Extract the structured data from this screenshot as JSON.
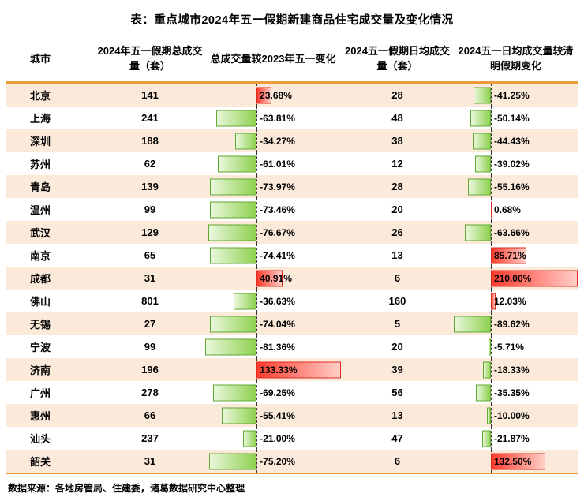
{
  "title": "表：重点城市2024年五一假期新建商品住宅成交量及变化情况",
  "source": "数据来源：各地房管局、住建委，诸葛数据研究中心整理",
  "colors": {
    "row_stripe": "#FBE9DA",
    "rule_orange": "#ED9C3B",
    "positive_bar": "#FF3B2F",
    "positive_bar_border": "#DE2A1E",
    "negative_bar": "#8ED150",
    "negative_bar_border": "#61A832"
  },
  "chart_data": {
    "type": "table",
    "title": "表：重点城市2024年五一假期新建商品住宅成交量及变化情况",
    "columns": [
      "城市",
      "2024年五一假期总成交量（套）",
      "总成交量较2023年五一变化",
      "2024五一假期日均成交量（套）",
      "2024五一日均成交量较清明假期变化"
    ],
    "bar_axes": {
      "change_vs_2023": {
        "min": -81.36,
        "max": 133.33
      },
      "change_vs_qingming": {
        "min": -89.62,
        "max": 210.0
      }
    },
    "rows": [
      {
        "city": "北京",
        "total": 141,
        "change_vs_2023": 23.68,
        "daily": 28,
        "change_vs_qingming": -41.25
      },
      {
        "city": "上海",
        "total": 241,
        "change_vs_2023": -63.81,
        "daily": 48,
        "change_vs_qingming": -50.14
      },
      {
        "city": "深圳",
        "total": 188,
        "change_vs_2023": -34.27,
        "daily": 38,
        "change_vs_qingming": -44.43
      },
      {
        "city": "苏州",
        "total": 62,
        "change_vs_2023": -61.01,
        "daily": 12,
        "change_vs_qingming": -39.02
      },
      {
        "city": "青岛",
        "total": 139,
        "change_vs_2023": -73.97,
        "daily": 28,
        "change_vs_qingming": -55.16
      },
      {
        "city": "温州",
        "total": 99,
        "change_vs_2023": -73.46,
        "daily": 20,
        "change_vs_qingming": 0.68
      },
      {
        "city": "武汉",
        "total": 129,
        "change_vs_2023": -76.67,
        "daily": 26,
        "change_vs_qingming": -63.66
      },
      {
        "city": "南京",
        "total": 65,
        "change_vs_2023": -74.41,
        "daily": 13,
        "change_vs_qingming": 85.71
      },
      {
        "city": "成都",
        "total": 31,
        "change_vs_2023": 40.91,
        "daily": 6,
        "change_vs_qingming": 210.0
      },
      {
        "city": "佛山",
        "total": 801,
        "change_vs_2023": -36.63,
        "daily": 160,
        "change_vs_qingming": 12.03
      },
      {
        "city": "无锡",
        "total": 27,
        "change_vs_2023": -74.04,
        "daily": 5,
        "change_vs_qingming": -89.62
      },
      {
        "city": "宁波",
        "total": 99,
        "change_vs_2023": -81.36,
        "daily": 20,
        "change_vs_qingming": -5.71
      },
      {
        "city": "济南",
        "total": 196,
        "change_vs_2023": 133.33,
        "daily": 39,
        "change_vs_qingming": -18.33
      },
      {
        "city": "广州",
        "total": 278,
        "change_vs_2023": -69.25,
        "daily": 56,
        "change_vs_qingming": -35.35
      },
      {
        "city": "惠州",
        "total": 66,
        "change_vs_2023": -55.41,
        "daily": 13,
        "change_vs_qingming": -10.0
      },
      {
        "city": "汕头",
        "total": 237,
        "change_vs_2023": -21.0,
        "daily": 47,
        "change_vs_qingming": -21.87
      },
      {
        "city": "韶关",
        "total": 31,
        "change_vs_2023": -75.2,
        "daily": 6,
        "change_vs_qingming": 132.5
      }
    ]
  }
}
